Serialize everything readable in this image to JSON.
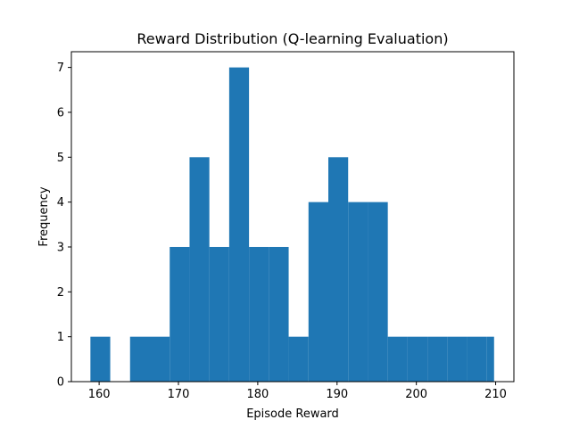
{
  "chart_data": {
    "type": "histogram",
    "title": "Reward Distribution (Q-learning Evaluation)",
    "xlabel": "Episode Reward",
    "ylabel": "Frequency",
    "xlim": [
      156.5,
      212.3
    ],
    "ylim": [
      0,
      7.35
    ],
    "xticks": [
      160,
      170,
      180,
      190,
      200,
      210
    ],
    "yticks": [
      0,
      1,
      2,
      3,
      4,
      5,
      6,
      7
    ],
    "bins": [
      {
        "x0": 158.9,
        "x1": 161.4,
        "count": 1
      },
      {
        "x0": 161.4,
        "x1": 163.9,
        "count": 0
      },
      {
        "x0": 163.9,
        "x1": 166.4,
        "count": 1
      },
      {
        "x0": 166.4,
        "x1": 168.9,
        "count": 1
      },
      {
        "x0": 168.9,
        "x1": 171.4,
        "count": 3
      },
      {
        "x0": 171.4,
        "x1": 173.9,
        "count": 5
      },
      {
        "x0": 173.9,
        "x1": 176.4,
        "count": 3
      },
      {
        "x0": 176.4,
        "x1": 178.9,
        "count": 7
      },
      {
        "x0": 178.9,
        "x1": 181.4,
        "count": 3
      },
      {
        "x0": 181.4,
        "x1": 183.9,
        "count": 3
      },
      {
        "x0": 183.9,
        "x1": 186.4,
        "count": 1
      },
      {
        "x0": 186.4,
        "x1": 188.9,
        "count": 4
      },
      {
        "x0": 188.9,
        "x1": 191.4,
        "count": 5
      },
      {
        "x0": 191.4,
        "x1": 193.9,
        "count": 4
      },
      {
        "x0": 193.9,
        "x1": 196.4,
        "count": 4
      },
      {
        "x0": 196.4,
        "x1": 198.9,
        "count": 1
      },
      {
        "x0": 198.9,
        "x1": 201.4,
        "count": 1
      },
      {
        "x0": 201.4,
        "x1": 203.9,
        "count": 1
      },
      {
        "x0": 203.9,
        "x1": 206.4,
        "count": 1
      },
      {
        "x0": 206.4,
        "x1": 208.9,
        "count": 1
      },
      {
        "x0": 208.9,
        "x1": 209.8,
        "count": 1
      }
    ],
    "bar_color": "#1f77b4",
    "grid": false,
    "legend": "none"
  }
}
